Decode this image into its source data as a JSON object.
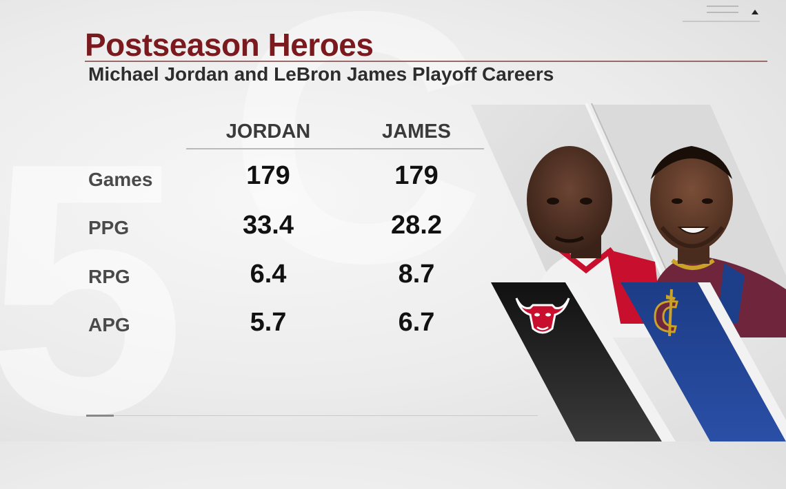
{
  "header": {
    "title": "Postseason Heroes",
    "subtitle": "Michael Jordan and LeBron James Playoff Careers"
  },
  "table": {
    "columns": [
      "JORDAN",
      "JAMES"
    ],
    "rows": [
      {
        "label": "Games",
        "values": [
          "179",
          "179"
        ]
      },
      {
        "label": "PPG",
        "values": [
          "33.4",
          "28.2"
        ]
      },
      {
        "label": "RPG",
        "values": [
          "6.4",
          "8.7"
        ]
      },
      {
        "label": "APG",
        "values": [
          "5.7",
          "6.7"
        ]
      }
    ]
  },
  "colors": {
    "title": "#7a1a1e",
    "bulls_red": "#c8102e",
    "cavs_wine": "#6f263d",
    "cavs_blue": "#1d3f8a",
    "cavs_gold": "#c9a227",
    "panel_dark": "#1a1a1a"
  },
  "icons": {
    "bulls_logo": "bulls-logo-icon",
    "cavs_logo": "cavs-logo-icon"
  }
}
